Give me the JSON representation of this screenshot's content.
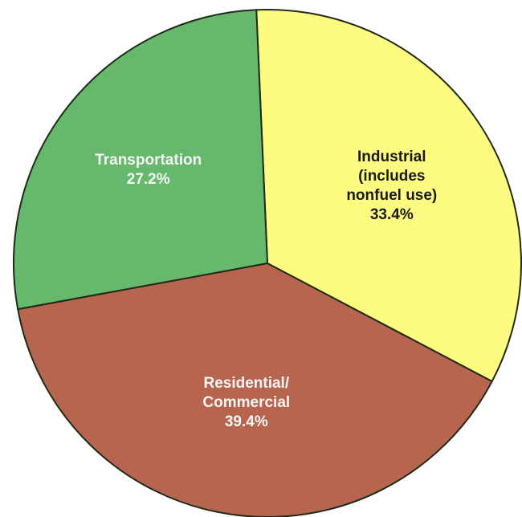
{
  "chart_data": {
    "type": "pie",
    "title": "",
    "slices": [
      {
        "label_lines": [
          "Industrial",
          "(includes",
          "nonfuel use)"
        ],
        "value": 33.4,
        "value_label": "33.4%",
        "color": "#fdfc80",
        "text_color": "#1a1a1a"
      },
      {
        "label_lines": [
          "Residential/",
          "Commercial"
        ],
        "value": 39.4,
        "value_label": "39.4%",
        "color": "#b7654f",
        "text_color": "#f5f5f5"
      },
      {
        "label_lines": [
          "Transportation"
        ],
        "value": 27.2,
        "value_label": "27.2%",
        "color": "#66b96c",
        "text_color": "#f5f5f5"
      }
    ]
  }
}
